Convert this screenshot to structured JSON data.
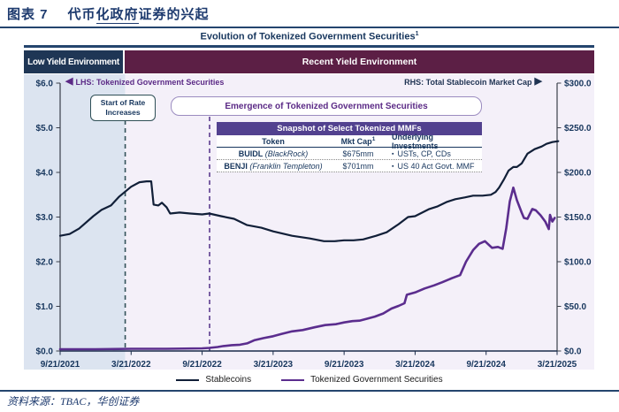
{
  "doc": {
    "chart_label": "图表 7",
    "title_part1": "代币",
    "title_underlined": "化政府",
    "title_part2": "证券的兴起",
    "source": "资料来源：TBAC，华创证券"
  },
  "figure": {
    "title": "Evolution of Tokenized Government Securities",
    "title_sup": "1",
    "banners": {
      "low_yield": "Low Yield Environment",
      "recent_yield": "Recent Yield Environment"
    },
    "lhs_label": "LHS: Tokenized Government Securities",
    "rhs_label": "RHS: Total Stablecoin Market Cap",
    "left_arrow": "◀",
    "right_arrow": "▶",
    "annotations": {
      "rate_line1": "Start of Rate",
      "rate_line2": "Increases",
      "emergence": "Emergence of Tokenized Government Securities"
    },
    "table": {
      "title": "Snapshot of Select Tokenized MMFs",
      "columns": [
        "Token",
        "Mkt Cap",
        "Underlying Investments"
      ],
      "mkt_cap_sup": "1",
      "bullet": "▪",
      "rows": [
        {
          "token_bold": "BUIDL",
          "token_rest": " (BlackRock)",
          "mkt_cap": "$675mm",
          "investments": "USTs, CP, CDs"
        },
        {
          "token_bold": "BENJI",
          "token_rest": " (Franklin Templeton)",
          "mkt_cap": "$701mm",
          "investments": "US 40 Act Govt. MMF"
        }
      ]
    },
    "legend": [
      "Stablecoins",
      "Tokenized Government Securities"
    ]
  },
  "chart_data": {
    "type": "line",
    "x_unit": "months since 2021-09-21",
    "x_range": [
      0,
      42
    ],
    "x_tick_positions": [
      0,
      6,
      12,
      18,
      24,
      30,
      36,
      42
    ],
    "x_tick_labels": [
      "9/21/2021",
      "3/21/2022",
      "9/21/2022",
      "3/21/2023",
      "9/21/2023",
      "3/21/2024",
      "9/21/2024",
      "3/21/2025"
    ],
    "left_axis": {
      "series": "Tokenized Government Securities ($B)",
      "range": [
        0,
        6
      ],
      "tick_values": [
        0,
        1,
        2,
        3,
        4,
        5,
        6
      ],
      "tick_labels": [
        "$0.0",
        "$1.0",
        "$2.0",
        "$3.0",
        "$4.0",
        "$5.0",
        "$6.0"
      ]
    },
    "right_axis": {
      "series": "Total Stablecoin Market Cap ($B)",
      "range": [
        0,
        300
      ],
      "tick_values": [
        0,
        50,
        100,
        150,
        200,
        250,
        300
      ],
      "tick_labels": [
        "$0.0",
        "$50.0",
        "$100.0",
        "$150.0",
        "$200.0",
        "$250.0",
        "$300.0"
      ]
    },
    "regions": [
      {
        "label": "Low Yield Environment",
        "from": 0,
        "to": 5.5,
        "color": "#dce4f0"
      },
      {
        "label": "Recent Yield Environment",
        "from": 5.5,
        "to": 42.9,
        "color": "#f4f0f9"
      }
    ],
    "events": [
      {
        "label": "Start of Rate Increases",
        "t": 5.5,
        "color": "#33525a"
      },
      {
        "label": "Emergence of Tokenized Government Securities",
        "t": 12.63,
        "color": "#5b3d8f"
      }
    ],
    "series": [
      {
        "name": "Stablecoins",
        "axis": "right",
        "color": "#111f38",
        "width": 2.2,
        "points": [
          [
            0,
            129
          ],
          [
            0.8,
            131
          ],
          [
            1.6,
            137
          ],
          [
            2.8,
            151
          ],
          [
            3.5,
            158
          ],
          [
            4.3,
            163
          ],
          [
            5,
            173
          ],
          [
            6,
            184
          ],
          [
            6.7,
            189
          ],
          [
            7.3,
            190
          ],
          [
            7.7,
            190
          ],
          [
            7.9,
            164
          ],
          [
            8.3,
            163
          ],
          [
            8.6,
            166
          ],
          [
            9,
            161
          ],
          [
            9.3,
            154
          ],
          [
            10.1,
            155
          ],
          [
            11,
            154
          ],
          [
            12,
            153
          ],
          [
            12.6,
            154
          ],
          [
            13.6,
            151
          ],
          [
            14.7,
            148
          ],
          [
            15.8,
            141
          ],
          [
            17,
            138
          ],
          [
            18,
            134
          ],
          [
            19.6,
            129
          ],
          [
            21.1,
            126
          ],
          [
            22.3,
            123
          ],
          [
            23.2,
            123
          ],
          [
            24,
            124
          ],
          [
            24.8,
            124
          ],
          [
            25.6,
            125
          ],
          [
            26.7,
            129
          ],
          [
            27.6,
            133
          ],
          [
            28.6,
            142
          ],
          [
            29.4,
            150
          ],
          [
            30,
            151
          ],
          [
            31.2,
            159
          ],
          [
            31.9,
            162
          ],
          [
            32.7,
            167
          ],
          [
            33.4,
            170
          ],
          [
            34.2,
            172
          ],
          [
            34.9,
            174
          ],
          [
            35.7,
            174
          ],
          [
            36.4,
            175
          ],
          [
            36.8,
            178
          ],
          [
            37.1,
            183
          ],
          [
            37.5,
            192
          ],
          [
            37.9,
            202
          ],
          [
            38.3,
            206
          ],
          [
            38.6,
            206
          ],
          [
            39,
            210
          ],
          [
            39.5,
            221
          ],
          [
            40.1,
            226
          ],
          [
            40.7,
            229
          ],
          [
            41.1,
            232
          ],
          [
            41.6,
            234
          ],
          [
            42.1,
            235
          ]
        ]
      },
      {
        "name": "Tokenized Government Securities",
        "axis": "left",
        "color": "#5b2d8e",
        "width": 2.6,
        "points": [
          [
            0,
            0.04
          ],
          [
            3,
            0.04
          ],
          [
            6,
            0.05
          ],
          [
            9,
            0.05
          ],
          [
            12,
            0.06
          ],
          [
            12.6,
            0.07
          ],
          [
            13.3,
            0.09
          ],
          [
            13.8,
            0.11
          ],
          [
            14.5,
            0.13
          ],
          [
            15.2,
            0.14
          ],
          [
            15.8,
            0.17
          ],
          [
            16.4,
            0.24
          ],
          [
            17.2,
            0.29
          ],
          [
            18,
            0.33
          ],
          [
            18.7,
            0.38
          ],
          [
            19.6,
            0.44
          ],
          [
            20.5,
            0.47
          ],
          [
            21.5,
            0.53
          ],
          [
            22.4,
            0.58
          ],
          [
            23.3,
            0.6
          ],
          [
            24,
            0.64
          ],
          [
            24.7,
            0.67
          ],
          [
            25.3,
            0.68
          ],
          [
            25.9,
            0.72
          ],
          [
            26.6,
            0.77
          ],
          [
            27.3,
            0.84
          ],
          [
            28,
            0.95
          ],
          [
            28.6,
            1.01
          ],
          [
            29.1,
            1.07
          ],
          [
            29.3,
            1.26
          ],
          [
            30,
            1.31
          ],
          [
            30.8,
            1.4
          ],
          [
            31.6,
            1.47
          ],
          [
            32.3,
            1.54
          ],
          [
            33.1,
            1.63
          ],
          [
            33.8,
            1.7
          ],
          [
            34.3,
            2.0
          ],
          [
            34.9,
            2.26
          ],
          [
            35.4,
            2.4
          ],
          [
            35.9,
            2.46
          ],
          [
            36.5,
            2.31
          ],
          [
            37,
            2.33
          ],
          [
            37.4,
            2.29
          ],
          [
            37.7,
            2.75
          ],
          [
            38,
            3.35
          ],
          [
            38.3,
            3.66
          ],
          [
            38.6,
            3.38
          ],
          [
            39,
            3.1
          ],
          [
            39.2,
            2.98
          ],
          [
            39.5,
            2.96
          ],
          [
            39.9,
            3.18
          ],
          [
            40.2,
            3.15
          ],
          [
            40.6,
            3.04
          ],
          [
            41,
            2.9
          ],
          [
            41.3,
            2.73
          ],
          [
            41.4,
            3.05
          ],
          [
            41.6,
            2.9
          ],
          [
            41.8,
            2.98
          ]
        ]
      }
    ],
    "layout_hints": {
      "grid": false,
      "legend_position": "bottom"
    }
  },
  "colors": {
    "navy_text": "#17365d",
    "banner_navy": "#1f3655",
    "banner_maroon": "#5c1f45",
    "purple_accent": "#5b2a86",
    "snapshot_header_bg": "#52418f",
    "stablecoin_line": "#111f38",
    "tokenized_line": "#5b2d8e",
    "low_yield_bg": "#dce4f0",
    "recent_yield_bg": "#f4f0f9",
    "rule_navy": "#24456e"
  }
}
